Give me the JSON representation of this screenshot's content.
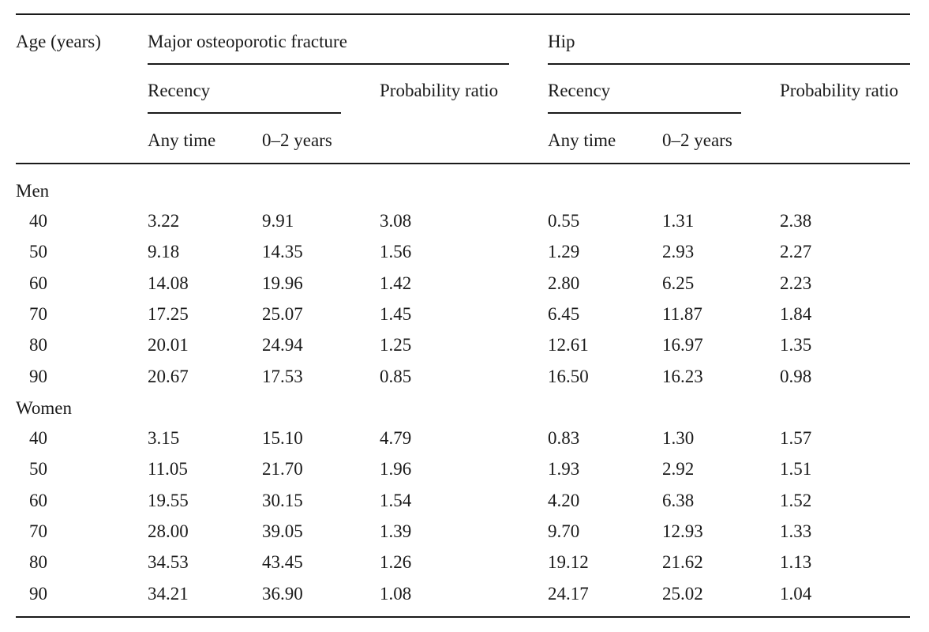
{
  "headers": {
    "age": "Age (years)",
    "mof": "Major osteoporotic fracture",
    "hip": "Hip",
    "recency_mof": "Recency",
    "recency_hip": "Recency",
    "ratio_mof": "Probability ratio",
    "ratio_hip": "Probability ratio",
    "any_mof": "Any time",
    "two_mof": "0–2 years",
    "any_hip": "Any time",
    "two_hip": "0–2 years"
  },
  "groups": [
    {
      "label": "Men",
      "rows": [
        [
          "40",
          "3.22",
          "9.91",
          "3.08",
          "0.55",
          "1.31",
          "2.38"
        ],
        [
          "50",
          "9.18",
          "14.35",
          "1.56",
          "1.29",
          "2.93",
          "2.27"
        ],
        [
          "60",
          "14.08",
          "19.96",
          "1.42",
          "2.80",
          "6.25",
          "2.23"
        ],
        [
          "70",
          "17.25",
          "25.07",
          "1.45",
          "6.45",
          "11.87",
          "1.84"
        ],
        [
          "80",
          "20.01",
          "24.94",
          "1.25",
          "12.61",
          "16.97",
          "1.35"
        ],
        [
          "90",
          "20.67",
          "17.53",
          "0.85",
          "16.50",
          "16.23",
          "0.98"
        ]
      ]
    },
    {
      "label": "Women",
      "rows": [
        [
          "40",
          "3.15",
          "15.10",
          "4.79",
          "0.83",
          "1.30",
          "1.57"
        ],
        [
          "50",
          "11.05",
          "21.70",
          "1.96",
          "1.93",
          "2.92",
          "1.51"
        ],
        [
          "60",
          "19.55",
          "30.15",
          "1.54",
          "4.20",
          "6.38",
          "1.52"
        ],
        [
          "70",
          "28.00",
          "39.05",
          "1.39",
          "9.70",
          "12.93",
          "1.33"
        ],
        [
          "80",
          "34.53",
          "43.45",
          "1.26",
          "19.12",
          "21.62",
          "1.13"
        ],
        [
          "90",
          "34.21",
          "36.90",
          "1.08",
          "24.17",
          "25.02",
          "1.04"
        ]
      ]
    }
  ]
}
